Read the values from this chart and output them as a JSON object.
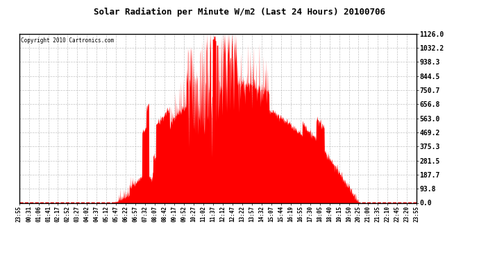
{
  "title": "Solar Radiation per Minute W/m2 (Last 24 Hours) 20100706",
  "copyright": "Copyright 2010 Cartronics.com",
  "yticks": [
    0.0,
    93.8,
    187.7,
    281.5,
    375.3,
    469.2,
    563.0,
    656.8,
    750.7,
    844.5,
    938.3,
    1032.2,
    1126.0
  ],
  "ymax": 1126.0,
  "ymin": 0.0,
  "bar_color": "#FF0000",
  "bg_color": "#FFFFFF",
  "grid_color": "#BBBBBB",
  "x_labels": [
    "23:55",
    "00:31",
    "01:06",
    "01:41",
    "02:17",
    "02:52",
    "03:27",
    "04:02",
    "04:37",
    "05:12",
    "05:47",
    "06:22",
    "06:57",
    "07:32",
    "08:07",
    "08:42",
    "09:17",
    "09:52",
    "10:27",
    "11:02",
    "11:37",
    "12:12",
    "12:47",
    "13:22",
    "13:57",
    "14:32",
    "15:07",
    "15:44",
    "16:19",
    "16:55",
    "17:30",
    "18:05",
    "18:40",
    "19:15",
    "19:50",
    "20:25",
    "21:00",
    "21:35",
    "22:10",
    "22:45",
    "23:20",
    "23:55"
  ],
  "sunrise_minute": 340,
  "sunset_minute": 1230,
  "solar_noon_minute": 740,
  "peak_value": 1126.0,
  "figwidth": 6.9,
  "figheight": 3.75,
  "dpi": 100
}
